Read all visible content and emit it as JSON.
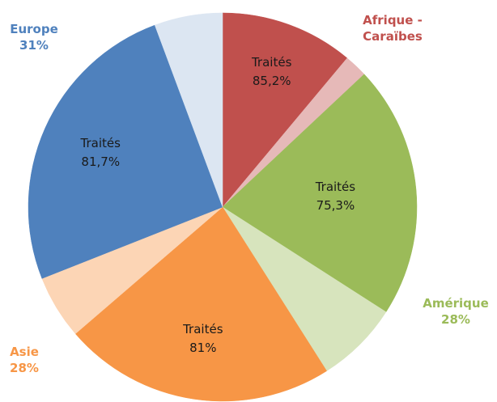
{
  "chart_data": {
    "type": "pie",
    "categories": [
      "Afrique - Caraïbes",
      "Amérique",
      "Asie",
      "Europe"
    ],
    "values": [
      13,
      28,
      28,
      31
    ],
    "value_labels": [
      null,
      "28%",
      "28%",
      "31%"
    ],
    "colors": [
      "#c0504d",
      "#9bbb59",
      "#f79646",
      "#4f81bd"
    ],
    "light_colors": [
      "#e6b9b8",
      "#d7e4bd",
      "#fcd5b5",
      "#dce6f2"
    ],
    "treated_label": "Traités",
    "treated_values": [
      85.2,
      75.3,
      81,
      81.7
    ],
    "treated_value_labels": [
      "85,2%",
      "75,3%",
      "81%",
      "81,7%"
    ]
  }
}
